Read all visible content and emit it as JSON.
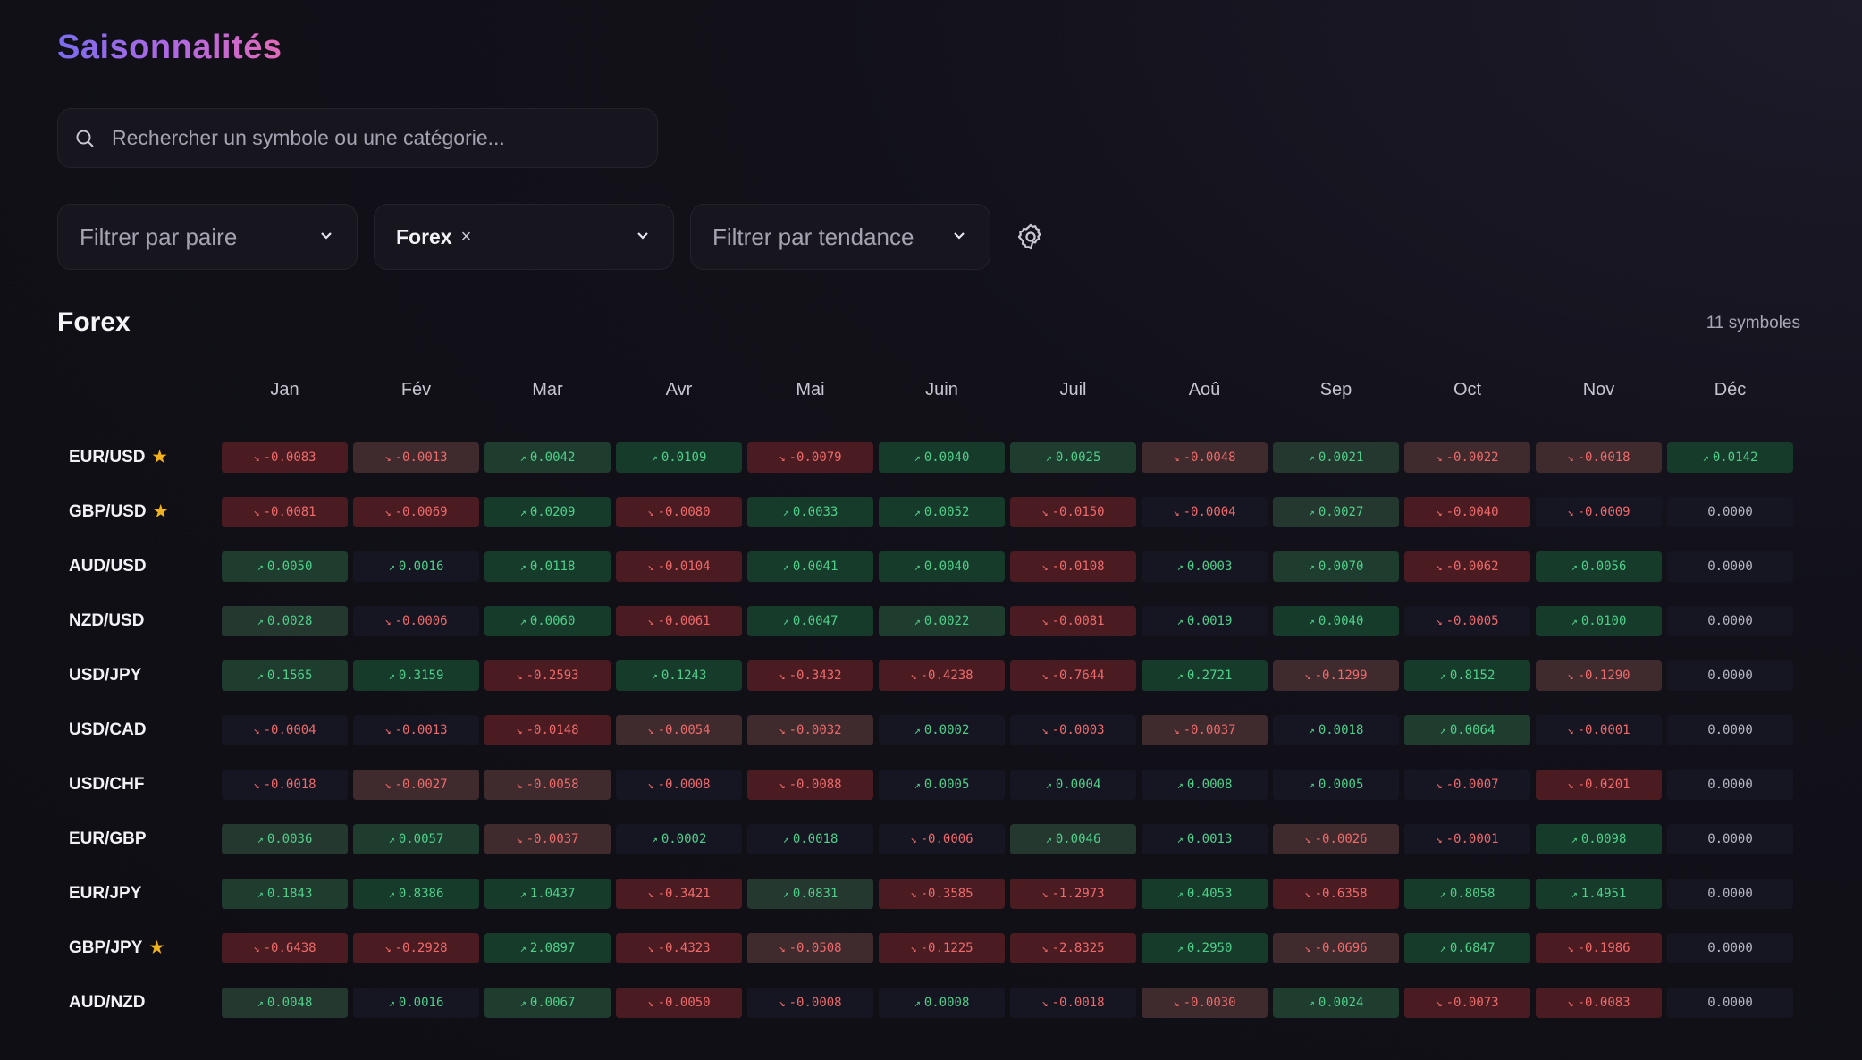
{
  "page_title": "Saisonnalités",
  "search": {
    "placeholder": "Rechercher un symbole ou une catégorie..."
  },
  "filters": {
    "pair_placeholder": "Filtrer par paire",
    "category_chip": "Forex",
    "chip_remove": "×",
    "trend_placeholder": "Filtrer par tendance"
  },
  "section": {
    "title": "Forex",
    "count": "11 symboles"
  },
  "months": [
    "Jan",
    "Fév",
    "Mar",
    "Avr",
    "Mai",
    "Juin",
    "Juil",
    "Aoû",
    "Sep",
    "Oct",
    "Nov",
    "Déc"
  ],
  "colors": {
    "up_strong": "#173b2a",
    "up_mid": "#1e3d2e",
    "up_light": "#24382f",
    "down_strong": "#4a1c22",
    "down_mid": "#4a2226",
    "down_light": "#3f2a2d",
    "neutral": "#161623",
    "up_text": "#4fd08a",
    "down_text": "#ef6a6a",
    "zero_text": "#b9b7c4",
    "star": "#f2b21b"
  },
  "rows": [
    {
      "symbol": "EUR/USD",
      "favorite": true,
      "values": [
        "-0.0083",
        "-0.0013",
        "0.0042",
        "0.0109",
        "-0.0079",
        "0.0040",
        "0.0025",
        "-0.0048",
        "0.0021",
        "-0.0022",
        "-0.0018",
        "0.0142"
      ]
    },
    {
      "symbol": "GBP/USD",
      "favorite": true,
      "values": [
        "-0.0081",
        "-0.0069",
        "0.0209",
        "-0.0080",
        "0.0033",
        "0.0052",
        "-0.0150",
        "-0.0004",
        "0.0027",
        "-0.0040",
        "-0.0009",
        "0.0000"
      ]
    },
    {
      "symbol": "AUD/USD",
      "favorite": false,
      "values": [
        "0.0050",
        "0.0016",
        "0.0118",
        "-0.0104",
        "0.0041",
        "0.0040",
        "-0.0108",
        "0.0003",
        "0.0070",
        "-0.0062",
        "0.0056",
        "0.0000"
      ]
    },
    {
      "symbol": "NZD/USD",
      "favorite": false,
      "values": [
        "0.0028",
        "-0.0006",
        "0.0060",
        "-0.0061",
        "0.0047",
        "0.0022",
        "-0.0081",
        "0.0019",
        "0.0040",
        "-0.0005",
        "0.0100",
        "0.0000"
      ]
    },
    {
      "symbol": "USD/JPY",
      "favorite": false,
      "values": [
        "0.1565",
        "0.3159",
        "-0.2593",
        "0.1243",
        "-0.3432",
        "-0.4238",
        "-0.7644",
        "0.2721",
        "-0.1299",
        "0.8152",
        "-0.1290",
        "0.0000"
      ]
    },
    {
      "symbol": "USD/CAD",
      "favorite": false,
      "values": [
        "-0.0004",
        "-0.0013",
        "-0.0148",
        "-0.0054",
        "-0.0032",
        "0.0002",
        "-0.0003",
        "-0.0037",
        "0.0018",
        "0.0064",
        "-0.0001",
        "0.0000"
      ]
    },
    {
      "symbol": "USD/CHF",
      "favorite": false,
      "values": [
        "-0.0018",
        "-0.0027",
        "-0.0058",
        "-0.0008",
        "-0.0088",
        "0.0005",
        "0.0004",
        "0.0008",
        "0.0005",
        "-0.0007",
        "-0.0201",
        "0.0000"
      ]
    },
    {
      "symbol": "EUR/GBP",
      "favorite": false,
      "values": [
        "0.0036",
        "0.0057",
        "-0.0037",
        "0.0002",
        "0.0018",
        "-0.0006",
        "0.0046",
        "0.0013",
        "-0.0026",
        "-0.0001",
        "0.0098",
        "0.0000"
      ]
    },
    {
      "symbol": "EUR/JPY",
      "favorite": false,
      "values": [
        "0.1843",
        "0.8386",
        "1.0437",
        "-0.3421",
        "0.0831",
        "-0.3585",
        "-1.2973",
        "0.4053",
        "-0.6358",
        "0.8058",
        "1.4951",
        "0.0000"
      ]
    },
    {
      "symbol": "GBP/JPY",
      "favorite": true,
      "values": [
        "-0.6438",
        "-0.2928",
        "2.0897",
        "-0.4323",
        "-0.0508",
        "-0.1225",
        "-2.8325",
        "0.2950",
        "-0.0696",
        "0.6847",
        "-0.1986",
        "0.0000"
      ]
    },
    {
      "symbol": "AUD/NZD",
      "favorite": false,
      "values": [
        "0.0048",
        "0.0016",
        "0.0067",
        "-0.0050",
        "-0.0008",
        "0.0008",
        "-0.0018",
        "-0.0030",
        "0.0024",
        "-0.0073",
        "-0.0083",
        "0.0000"
      ]
    }
  ],
  "cell_shades": [
    [
      "dm",
      "dl",
      "um",
      "us",
      "dm",
      "us",
      "um",
      "dl",
      "ul",
      "dl",
      "dl",
      "us"
    ],
    [
      "dm",
      "dm",
      "us",
      "dm",
      "us",
      "us",
      "dm",
      "n",
      "ul",
      "dm",
      "n",
      "z"
    ],
    [
      "um",
      "n",
      "us",
      "dm",
      "us",
      "us",
      "dm",
      "n",
      "um",
      "dm",
      "us",
      "z"
    ],
    [
      "ul",
      "n",
      "us",
      "dm",
      "us",
      "um",
      "dm",
      "n",
      "us",
      "n",
      "us",
      "z"
    ],
    [
      "um",
      "us",
      "dm",
      "us",
      "dm",
      "dm",
      "dm",
      "us",
      "dl",
      "us",
      "dl",
      "z"
    ],
    [
      "n",
      "n",
      "dm",
      "dl",
      "dl",
      "n",
      "n",
      "dl",
      "n",
      "um",
      "n",
      "z"
    ],
    [
      "n",
      "dl",
      "dl",
      "n",
      "dm",
      "n",
      "n",
      "n",
      "n",
      "n",
      "dm",
      "z"
    ],
    [
      "ul",
      "um",
      "dl",
      "n",
      "n",
      "n",
      "ul",
      "n",
      "dl",
      "n",
      "us",
      "z"
    ],
    [
      "um",
      "us",
      "us",
      "dm",
      "ul",
      "dm",
      "dm",
      "us",
      "dm",
      "us",
      "us",
      "z"
    ],
    [
      "dm",
      "dm",
      "us",
      "dm",
      "dl",
      "dm",
      "dm",
      "us",
      "dl",
      "us",
      "dm",
      "z"
    ],
    [
      "ul",
      "n",
      "um",
      "dm",
      "n",
      "n",
      "n",
      "dl",
      "um",
      "dm",
      "dm",
      "z"
    ]
  ]
}
